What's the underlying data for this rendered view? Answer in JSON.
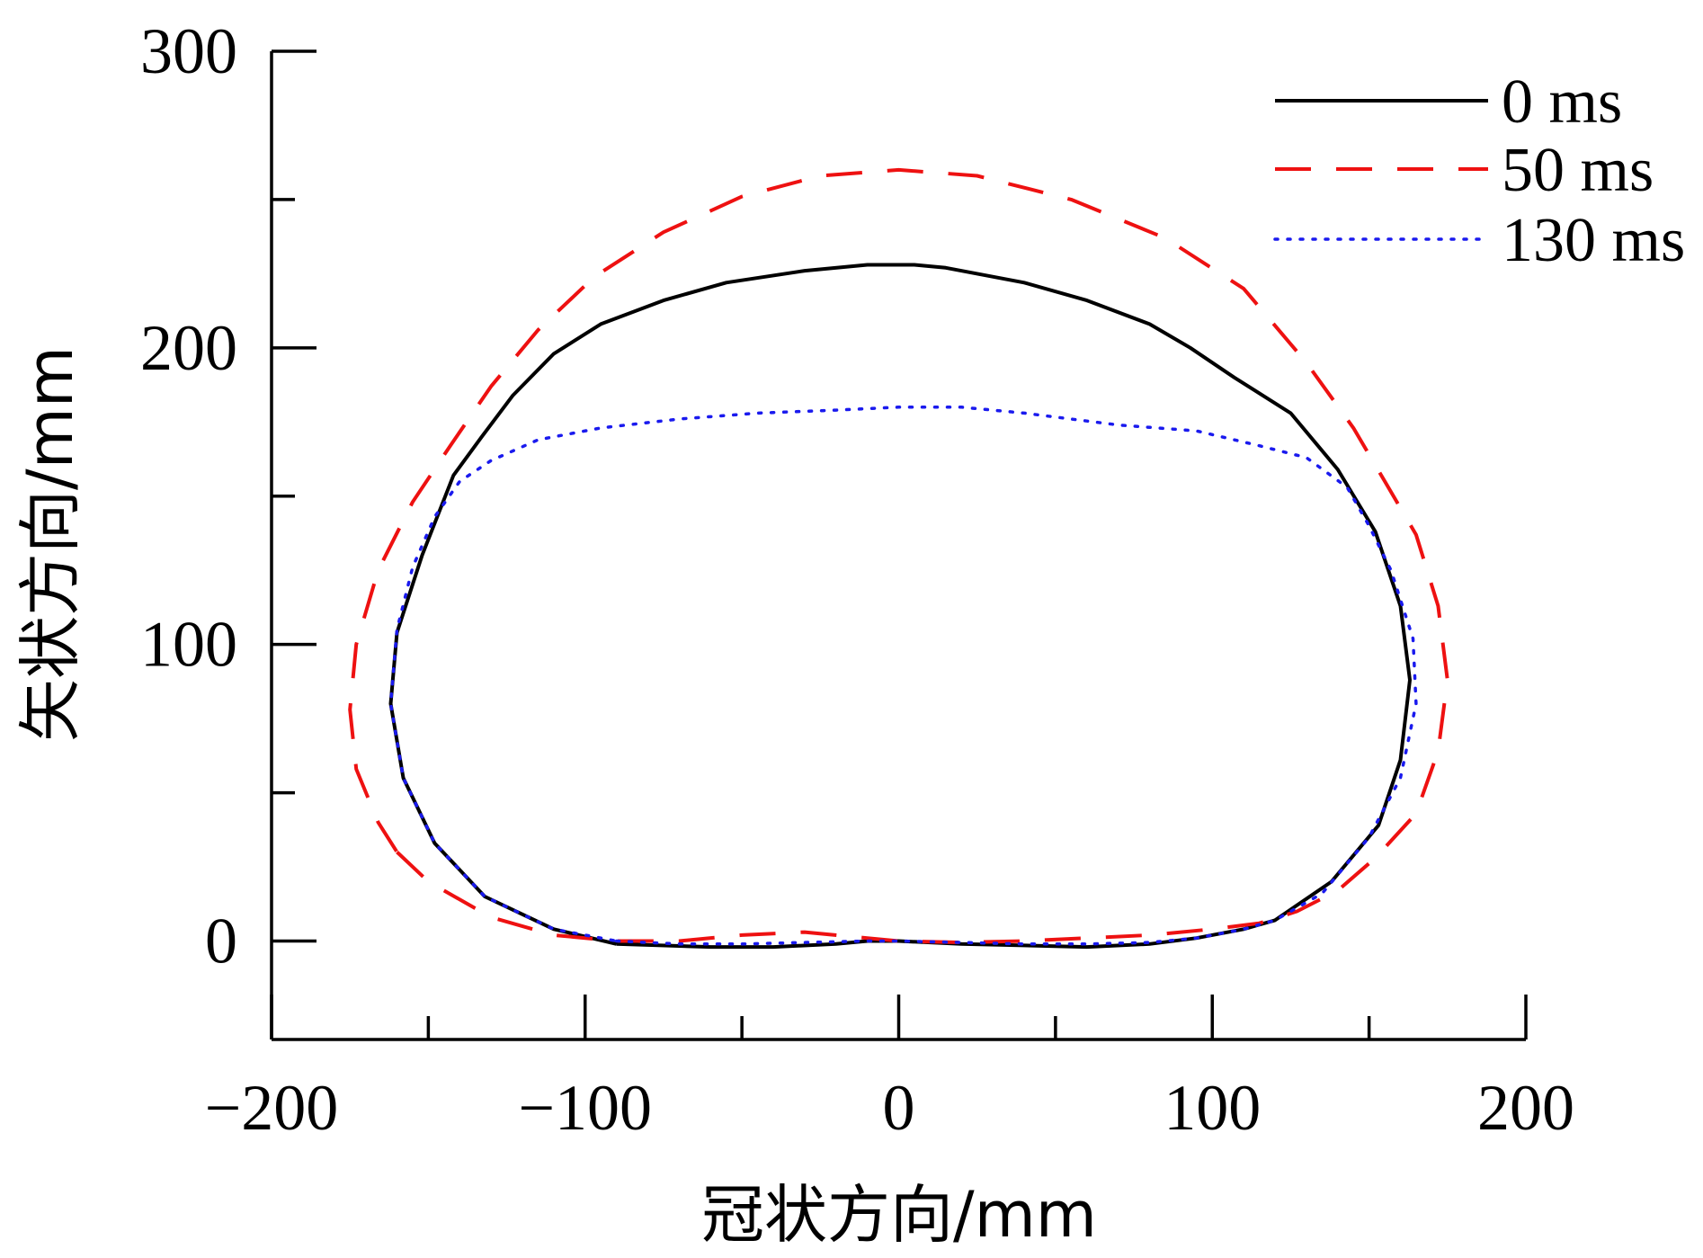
{
  "chart_data": {
    "type": "line",
    "xlabel": "冠状方向/mm",
    "ylabel": "矢状方向/mm",
    "xlim": [
      -200,
      200
    ],
    "ylim": [
      -33,
      300
    ],
    "x_ticks": [
      -200,
      -100,
      0,
      100,
      200
    ],
    "x_tick_labels": [
      "−200",
      "−100",
      "0",
      "100",
      "200"
    ],
    "x_minor_ticks": [
      -150,
      -50,
      50,
      150
    ],
    "y_ticks": [
      0,
      100,
      200,
      300
    ],
    "y_tick_labels": [
      "0",
      "100",
      "200",
      "300"
    ],
    "y_minor_ticks": [
      50,
      150,
      250
    ],
    "grid": false,
    "legend_position": "top-right",
    "series": [
      {
        "name": "0 ms",
        "color": "#000000",
        "style": "solid",
        "points": [
          [
            -90,
            -1
          ],
          [
            -60,
            -2
          ],
          [
            -40,
            -2
          ],
          [
            -20,
            -1
          ],
          [
            -10,
            0
          ],
          [
            0,
            0
          ],
          [
            20,
            -1
          ],
          [
            40,
            -1.5
          ],
          [
            60,
            -2
          ],
          [
            80,
            -1
          ],
          [
            95,
            1
          ],
          [
            110,
            4
          ],
          [
            120,
            7
          ],
          [
            138,
            20
          ],
          [
            153,
            39
          ],
          [
            160,
            61
          ],
          [
            163,
            88
          ],
          [
            160,
            113
          ],
          [
            152,
            138
          ],
          [
            140,
            159
          ],
          [
            125,
            178
          ],
          [
            107,
            190
          ],
          [
            93,
            200
          ],
          [
            80,
            208
          ],
          [
            60,
            216
          ],
          [
            40,
            222
          ],
          [
            15,
            227
          ],
          [
            5,
            228
          ],
          [
            -10,
            228
          ],
          [
            -30,
            226
          ],
          [
            -55,
            222
          ],
          [
            -75,
            216
          ],
          [
            -95,
            208
          ],
          [
            -110,
            198
          ],
          [
            -123,
            184
          ],
          [
            -133,
            170
          ],
          [
            -142,
            157
          ],
          [
            -152,
            130
          ],
          [
            -160,
            104
          ],
          [
            -162,
            80
          ],
          [
            -158,
            55
          ],
          [
            -148,
            33
          ],
          [
            -132,
            15
          ],
          [
            -110,
            4
          ],
          [
            -90,
            -1
          ]
        ]
      },
      {
        "name": "50 ms",
        "color": "#ee1111",
        "style": "dashed",
        "points": [
          [
            -160,
            30
          ],
          [
            -150,
            20
          ],
          [
            -130,
            8
          ],
          [
            -110,
            2
          ],
          [
            -90,
            0
          ],
          [
            -70,
            0
          ],
          [
            -50,
            2
          ],
          [
            -30,
            3
          ],
          [
            -10,
            1
          ],
          [
            0,
            0
          ],
          [
            20,
            -0.5
          ],
          [
            40,
            0
          ],
          [
            60,
            1
          ],
          [
            80,
            2
          ],
          [
            100,
            4
          ],
          [
            115,
            6
          ],
          [
            127,
            10
          ],
          [
            140,
            17
          ],
          [
            152,
            28
          ],
          [
            165,
            43
          ],
          [
            172,
            64
          ],
          [
            175,
            88
          ],
          [
            172,
            113
          ],
          [
            165,
            137
          ],
          [
            155,
            155
          ],
          [
            145,
            173
          ],
          [
            130,
            195
          ],
          [
            110,
            220
          ],
          [
            85,
            237
          ],
          [
            55,
            250
          ],
          [
            25,
            258
          ],
          [
            0,
            260
          ],
          [
            -25,
            258
          ],
          [
            -50,
            251
          ],
          [
            -75,
            239
          ],
          [
            -97,
            224
          ],
          [
            -115,
            206
          ],
          [
            -130,
            187
          ],
          [
            -143,
            167
          ],
          [
            -155,
            148
          ],
          [
            -166,
            125
          ],
          [
            -173,
            100
          ],
          [
            -175,
            78
          ],
          [
            -173,
            58
          ],
          [
            -166,
            40
          ],
          [
            -160,
            30
          ]
        ]
      },
      {
        "name": "130 ms",
        "color": "#1a1aee",
        "style": "dotted",
        "points": [
          [
            -90,
            0
          ],
          [
            -70,
            -1
          ],
          [
            -50,
            -1
          ],
          [
            -30,
            -0.5
          ],
          [
            -10,
            0
          ],
          [
            0,
            0
          ],
          [
            20,
            -0.5
          ],
          [
            40,
            -1
          ],
          [
            60,
            -1
          ],
          [
            80,
            -0.5
          ],
          [
            95,
            1
          ],
          [
            110,
            4
          ],
          [
            120,
            7
          ],
          [
            135,
            16
          ],
          [
            150,
            35
          ],
          [
            160,
            55
          ],
          [
            165,
            80
          ],
          [
            164,
            102
          ],
          [
            157,
            125
          ],
          [
            150,
            140
          ],
          [
            143,
            153
          ],
          [
            130,
            163
          ],
          [
            115,
            167
          ],
          [
            95,
            172
          ],
          [
            70,
            174
          ],
          [
            40,
            178
          ],
          [
            20,
            180
          ],
          [
            0,
            180
          ],
          [
            -20,
            179
          ],
          [
            -45,
            178
          ],
          [
            -70,
            176
          ],
          [
            -95,
            173
          ],
          [
            -115,
            169
          ],
          [
            -130,
            162
          ],
          [
            -140,
            155
          ],
          [
            -148,
            143
          ],
          [
            -155,
            126
          ],
          [
            -160,
            105
          ],
          [
            -162,
            80
          ],
          [
            -158,
            55
          ],
          [
            -148,
            33
          ],
          [
            -132,
            15
          ],
          [
            -110,
            4
          ],
          [
            -90,
            0
          ]
        ]
      }
    ]
  }
}
